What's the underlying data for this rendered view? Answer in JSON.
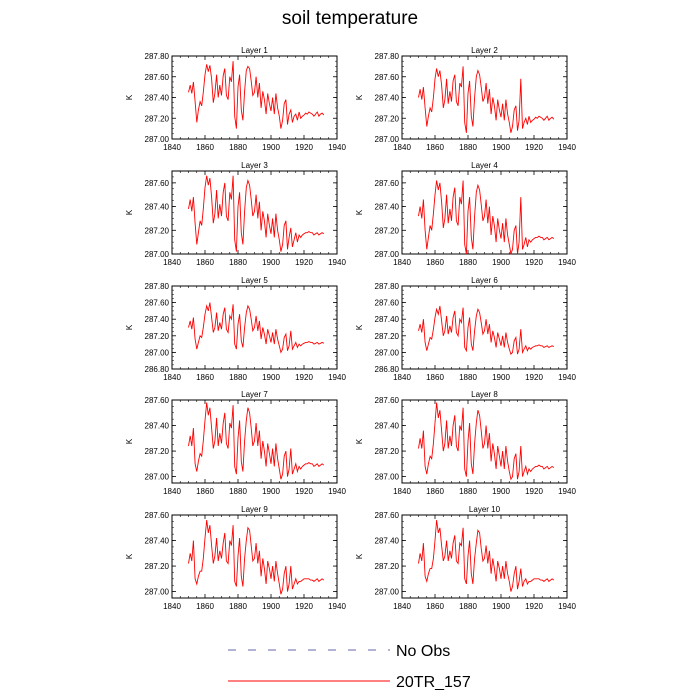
{
  "title": "soil temperature",
  "legend": {
    "placement": "bottom-center",
    "entries": [
      {
        "label": "No Obs",
        "style": "dashed",
        "color": "#6666aa"
      },
      {
        "label": "20TR_157",
        "style": "solid",
        "color": "#ff0000"
      }
    ]
  },
  "series_color": "#ff0000",
  "chart_data": [
    {
      "type": "line",
      "title": "Layer 1",
      "ylabel": "K",
      "xlim": [
        1840,
        1940
      ],
      "ylim": [
        287.0,
        287.8
      ],
      "xticks": [
        1840,
        1860,
        1880,
        1900,
        1920,
        1940
      ],
      "yticks": [
        287.0,
        287.2,
        287.4,
        287.6,
        287.8
      ],
      "ytick_labels": [
        "287.00",
        "287.20",
        "287.40",
        "287.60",
        "287.80"
      ],
      "x0": 1850,
      "values": [
        287.45,
        287.52,
        287.44,
        287.55,
        287.36,
        287.16,
        287.28,
        287.36,
        287.32,
        287.45,
        287.62,
        287.72,
        287.65,
        287.71,
        287.58,
        287.35,
        287.44,
        287.62,
        287.4,
        287.52,
        287.42,
        287.61,
        287.68,
        287.42,
        287.38,
        287.6,
        287.55,
        287.75,
        287.22,
        287.1,
        287.5,
        287.62,
        287.28,
        287.18,
        287.46,
        287.66,
        287.7,
        287.68,
        287.56,
        287.42,
        287.45,
        287.6,
        287.4,
        287.54,
        287.3,
        287.46,
        287.38,
        287.24,
        287.44,
        287.34,
        287.27,
        287.4,
        287.24,
        287.44,
        287.3,
        287.22,
        287.1,
        287.18,
        287.34,
        287.38,
        287.14,
        287.24,
        287.28,
        287.16,
        287.22,
        287.24,
        287.18,
        287.26,
        287.2,
        287.22,
        287.23,
        287.25,
        287.24,
        287.26,
        287.25,
        287.24,
        287.22,
        287.24,
        287.26,
        287.22,
        287.24,
        287.25,
        287.23
      ],
      "x_end": 1932
    },
    {
      "type": "line",
      "title": "Layer 2",
      "ylabel": "K",
      "xlim": [
        1840,
        1940
      ],
      "ylim": [
        287.0,
        287.8
      ],
      "xticks": [
        1840,
        1860,
        1880,
        1900,
        1920,
        1940
      ],
      "yticks": [
        287.0,
        287.2,
        287.4,
        287.6,
        287.8
      ],
      "ytick_labels": [
        "287.00",
        "287.20",
        "287.40",
        "287.60",
        "287.80"
      ],
      "x0": 1850,
      "values": [
        287.4,
        287.48,
        287.38,
        287.5,
        287.3,
        287.12,
        287.22,
        287.3,
        287.26,
        287.4,
        287.58,
        287.68,
        287.6,
        287.66,
        287.52,
        287.3,
        287.38,
        287.58,
        287.34,
        287.46,
        287.36,
        287.56,
        287.62,
        287.36,
        287.32,
        287.54,
        287.5,
        287.7,
        287.16,
        287.06,
        287.44,
        287.56,
        287.22,
        287.12,
        287.4,
        287.6,
        287.66,
        287.62,
        287.5,
        287.36,
        287.4,
        287.54,
        287.34,
        287.48,
        287.24,
        287.4,
        287.32,
        287.18,
        287.38,
        287.28,
        287.21,
        287.34,
        287.18,
        287.38,
        287.24,
        287.16,
        287.06,
        287.12,
        287.28,
        287.32,
        287.08,
        287.18,
        287.58,
        287.1,
        287.16,
        287.2,
        287.14,
        287.22,
        287.16,
        287.18,
        287.19,
        287.21,
        287.2,
        287.22,
        287.21,
        287.2,
        287.18,
        287.2,
        287.22,
        287.18,
        287.2,
        287.21,
        287.19
      ],
      "x_end": 1932
    },
    {
      "type": "line",
      "title": "Layer 3",
      "ylabel": "K",
      "xlim": [
        1840,
        1940
      ],
      "ylim": [
        287.0,
        287.7
      ],
      "xticks": [
        1840,
        1860,
        1880,
        1900,
        1920,
        1940
      ],
      "yticks": [
        287.0,
        287.2,
        287.4,
        287.6
      ],
      "ytick_labels": [
        "287.00",
        "287.20",
        "287.40",
        "287.60"
      ],
      "x0": 1850,
      "values": [
        287.38,
        287.46,
        287.36,
        287.48,
        287.26,
        287.08,
        287.18,
        287.28,
        287.24,
        287.38,
        287.56,
        287.66,
        287.58,
        287.64,
        287.48,
        287.26,
        287.34,
        287.54,
        287.3,
        287.42,
        287.32,
        287.52,
        287.6,
        287.32,
        287.28,
        287.52,
        287.46,
        287.66,
        287.12,
        287.02,
        287.4,
        287.52,
        287.18,
        287.08,
        287.36,
        287.56,
        287.62,
        287.58,
        287.46,
        287.32,
        287.36,
        287.5,
        287.3,
        287.44,
        287.2,
        287.36,
        287.28,
        287.14,
        287.34,
        287.24,
        287.17,
        287.3,
        287.14,
        287.34,
        287.2,
        287.12,
        287.02,
        287.08,
        287.24,
        287.28,
        287.04,
        287.14,
        287.22,
        287.06,
        287.12,
        287.18,
        287.1,
        287.16,
        287.14,
        287.16,
        287.17,
        287.18,
        287.18,
        287.19,
        287.18,
        287.18,
        287.16,
        287.17,
        287.18,
        287.16,
        287.17,
        287.18,
        287.17
      ],
      "x_end": 1932
    },
    {
      "type": "line",
      "title": "Layer 4",
      "ylabel": "K",
      "xlim": [
        1840,
        1940
      ],
      "ylim": [
        287.0,
        287.7
      ],
      "xticks": [
        1840,
        1860,
        1880,
        1900,
        1920,
        1940
      ],
      "yticks": [
        287.0,
        287.2,
        287.4,
        287.6
      ],
      "ytick_labels": [
        "287.00",
        "287.20",
        "287.40",
        "287.60"
      ],
      "x0": 1850,
      "values": [
        287.32,
        287.4,
        287.3,
        287.46,
        287.2,
        287.04,
        287.14,
        287.24,
        287.2,
        287.34,
        287.5,
        287.62,
        287.54,
        287.6,
        287.44,
        287.22,
        287.3,
        287.5,
        287.26,
        287.38,
        287.28,
        287.48,
        287.56,
        287.28,
        287.24,
        287.48,
        287.42,
        287.62,
        287.08,
        287.0,
        287.36,
        287.48,
        287.14,
        287.04,
        287.32,
        287.52,
        287.58,
        287.54,
        287.42,
        287.28,
        287.32,
        287.46,
        287.26,
        287.4,
        287.16,
        287.32,
        287.24,
        287.1,
        287.3,
        287.2,
        287.13,
        287.26,
        287.1,
        287.3,
        287.16,
        287.08,
        287.0,
        287.04,
        287.2,
        287.24,
        287.0,
        287.1,
        287.48,
        287.04,
        287.08,
        287.14,
        287.06,
        287.12,
        287.1,
        287.12,
        287.13,
        287.14,
        287.14,
        287.15,
        287.14,
        287.14,
        287.12,
        287.13,
        287.14,
        287.12,
        287.13,
        287.14,
        287.13
      ],
      "x_end": 1932
    },
    {
      "type": "line",
      "title": "Layer 5",
      "ylabel": "K",
      "xlim": [
        1840,
        1940
      ],
      "ylim": [
        286.8,
        287.8
      ],
      "xticks": [
        1840,
        1860,
        1880,
        1900,
        1920,
        1940
      ],
      "yticks": [
        286.8,
        287.0,
        287.2,
        287.4,
        287.6,
        287.8
      ],
      "ytick_labels": [
        "286.80",
        "287.00",
        "287.20",
        "287.40",
        "287.60",
        "287.80"
      ],
      "x0": 1850,
      "values": [
        287.3,
        287.38,
        287.28,
        287.42,
        287.16,
        287.04,
        287.12,
        287.2,
        287.18,
        287.3,
        287.46,
        287.56,
        287.5,
        287.6,
        287.42,
        287.24,
        287.3,
        287.48,
        287.26,
        287.36,
        287.28,
        287.46,
        287.54,
        287.28,
        287.24,
        287.44,
        287.4,
        287.58,
        287.1,
        287.04,
        287.34,
        287.46,
        287.14,
        287.06,
        287.3,
        287.48,
        287.56,
        287.52,
        287.4,
        287.26,
        287.3,
        287.44,
        287.26,
        287.38,
        287.16,
        287.3,
        287.22,
        287.1,
        287.28,
        287.2,
        287.12,
        287.24,
        287.1,
        287.28,
        287.16,
        287.08,
        287.0,
        287.04,
        287.18,
        287.22,
        287.02,
        287.08,
        287.26,
        287.04,
        287.08,
        287.12,
        287.06,
        287.1,
        287.08,
        287.1,
        287.11,
        287.12,
        287.12,
        287.13,
        287.12,
        287.12,
        287.1,
        287.11,
        287.12,
        287.1,
        287.11,
        287.12,
        287.11
      ],
      "x_end": 1932
    },
    {
      "type": "line",
      "title": "Layer 6",
      "ylabel": "K",
      "xlim": [
        1840,
        1940
      ],
      "ylim": [
        286.8,
        287.8
      ],
      "xticks": [
        1840,
        1860,
        1880,
        1900,
        1920,
        1940
      ],
      "yticks": [
        286.8,
        287.0,
        287.2,
        287.4,
        287.6,
        287.8
      ],
      "ytick_labels": [
        "286.80",
        "287.00",
        "287.20",
        "287.40",
        "287.60",
        "287.80"
      ],
      "x0": 1850,
      "values": [
        287.26,
        287.34,
        287.24,
        287.4,
        287.12,
        287.02,
        287.1,
        287.18,
        287.16,
        287.28,
        287.42,
        287.52,
        287.46,
        287.56,
        287.38,
        287.2,
        287.26,
        287.44,
        287.22,
        287.32,
        287.24,
        287.42,
        287.5,
        287.24,
        287.2,
        287.4,
        287.36,
        287.54,
        287.06,
        287.02,
        287.3,
        287.42,
        287.1,
        287.02,
        287.26,
        287.44,
        287.52,
        287.48,
        287.36,
        287.22,
        287.26,
        287.4,
        287.22,
        287.34,
        287.12,
        287.26,
        287.18,
        287.06,
        287.24,
        287.16,
        287.08,
        287.2,
        287.06,
        287.24,
        287.12,
        287.04,
        286.98,
        287.0,
        287.14,
        287.18,
        286.98,
        287.04,
        287.28,
        287.0,
        287.04,
        287.08,
        287.02,
        287.06,
        287.04,
        287.06,
        287.07,
        287.08,
        287.08,
        287.09,
        287.08,
        287.08,
        287.06,
        287.07,
        287.08,
        287.06,
        287.07,
        287.08,
        287.07
      ],
      "x_end": 1932
    },
    {
      "type": "line",
      "title": "Layer 7",
      "ylabel": "K",
      "xlim": [
        1840,
        1940
      ],
      "ylim": [
        286.95,
        287.6
      ],
      "xticks": [
        1840,
        1860,
        1880,
        1900,
        1920,
        1940
      ],
      "yticks": [
        287.0,
        287.2,
        287.4,
        287.6
      ],
      "ytick_labels": [
        "287.00",
        "287.20",
        "287.40",
        "287.60"
      ],
      "x0": 1850,
      "values": [
        287.24,
        287.32,
        287.24,
        287.38,
        287.1,
        287.04,
        287.12,
        287.18,
        287.16,
        287.28,
        287.44,
        287.58,
        287.48,
        287.54,
        287.38,
        287.22,
        287.28,
        287.46,
        287.24,
        287.34,
        287.26,
        287.42,
        287.5,
        287.26,
        287.22,
        287.42,
        287.38,
        287.56,
        287.08,
        287.02,
        287.3,
        287.44,
        287.12,
        287.04,
        287.28,
        287.44,
        287.54,
        287.5,
        287.38,
        287.24,
        287.28,
        287.42,
        287.24,
        287.36,
        287.14,
        287.28,
        287.2,
        287.08,
        287.26,
        287.18,
        287.1,
        287.22,
        287.08,
        287.26,
        287.14,
        287.06,
        286.98,
        287.02,
        287.16,
        287.2,
        287.0,
        287.06,
        287.22,
        287.02,
        287.06,
        287.1,
        287.04,
        287.08,
        287.06,
        287.08,
        287.09,
        287.1,
        287.1,
        287.11,
        287.1,
        287.1,
        287.08,
        287.09,
        287.1,
        287.08,
        287.09,
        287.1,
        287.09
      ],
      "x_end": 1932
    },
    {
      "type": "line",
      "title": "Layer 8",
      "ylabel": "K",
      "xlim": [
        1840,
        1940
      ],
      "ylim": [
        286.95,
        287.6
      ],
      "xticks": [
        1840,
        1860,
        1880,
        1900,
        1920,
        1940
      ],
      "yticks": [
        287.0,
        287.2,
        287.4,
        287.6
      ],
      "ytick_labels": [
        "287.00",
        "287.20",
        "287.40",
        "287.60"
      ],
      "x0": 1850,
      "values": [
        287.22,
        287.3,
        287.22,
        287.36,
        287.08,
        287.02,
        287.1,
        287.16,
        287.14,
        287.26,
        287.42,
        287.58,
        287.46,
        287.52,
        287.36,
        287.2,
        287.26,
        287.44,
        287.22,
        287.32,
        287.24,
        287.4,
        287.48,
        287.24,
        287.2,
        287.4,
        287.36,
        287.54,
        287.06,
        287.0,
        287.28,
        287.42,
        287.1,
        287.02,
        287.26,
        287.42,
        287.52,
        287.48,
        287.36,
        287.22,
        287.26,
        287.4,
        287.22,
        287.34,
        287.12,
        287.26,
        287.18,
        287.06,
        287.24,
        287.16,
        287.08,
        287.2,
        287.06,
        287.24,
        287.12,
        287.04,
        286.98,
        287.0,
        287.14,
        287.18,
        286.98,
        287.04,
        287.24,
        287.0,
        287.04,
        287.08,
        287.02,
        287.06,
        287.04,
        287.06,
        287.07,
        287.08,
        287.08,
        287.09,
        287.08,
        287.08,
        287.06,
        287.07,
        287.08,
        287.06,
        287.07,
        287.08,
        287.07
      ],
      "x_end": 1932
    },
    {
      "type": "line",
      "title": "Layer 9",
      "ylabel": "K",
      "xlim": [
        1840,
        1940
      ],
      "ylim": [
        286.95,
        287.6
      ],
      "xticks": [
        1840,
        1860,
        1880,
        1900,
        1920,
        1940
      ],
      "yticks": [
        287.0,
        287.2,
        287.4,
        287.6
      ],
      "ytick_labels": [
        "287.00",
        "287.20",
        "287.40",
        "287.60"
      ],
      "x0": 1850,
      "values": [
        287.22,
        287.3,
        287.24,
        287.4,
        287.1,
        287.06,
        287.12,
        287.16,
        287.16,
        287.26,
        287.42,
        287.56,
        287.46,
        287.52,
        287.36,
        287.22,
        287.28,
        287.42,
        287.24,
        287.32,
        287.26,
        287.38,
        287.46,
        287.24,
        287.22,
        287.4,
        287.36,
        287.52,
        287.08,
        287.04,
        287.28,
        287.42,
        287.12,
        287.04,
        287.26,
        287.4,
        287.5,
        287.48,
        287.36,
        287.24,
        287.26,
        287.38,
        287.22,
        287.32,
        287.12,
        287.26,
        287.18,
        287.06,
        287.24,
        287.18,
        287.1,
        287.2,
        287.08,
        287.24,
        287.14,
        287.06,
        286.98,
        287.02,
        287.14,
        287.2,
        287.0,
        287.06,
        287.2,
        287.02,
        287.06,
        287.1,
        287.06,
        287.08,
        287.08,
        287.09,
        287.1,
        287.1,
        287.1,
        287.1,
        287.09,
        287.09,
        287.08,
        287.09,
        287.1,
        287.08,
        287.09,
        287.1,
        287.09
      ],
      "x_end": 1932
    },
    {
      "type": "line",
      "title": "Layer 10",
      "ylabel": "K",
      "xlim": [
        1840,
        1940
      ],
      "ylim": [
        286.95,
        287.6
      ],
      "xticks": [
        1840,
        1860,
        1880,
        1900,
        1920,
        1940
      ],
      "yticks": [
        287.0,
        287.2,
        287.4,
        287.6
      ],
      "ytick_labels": [
        "287.00",
        "287.20",
        "287.40",
        "287.60"
      ],
      "x0": 1850,
      "values": [
        287.22,
        287.3,
        287.24,
        287.38,
        287.12,
        287.08,
        287.14,
        287.18,
        287.18,
        287.26,
        287.4,
        287.56,
        287.46,
        287.5,
        287.36,
        287.24,
        287.28,
        287.4,
        287.24,
        287.32,
        287.26,
        287.38,
        287.44,
        287.24,
        287.22,
        287.38,
        287.36,
        287.5,
        287.1,
        287.06,
        287.28,
        287.4,
        287.14,
        287.06,
        287.26,
        287.38,
        287.48,
        287.46,
        287.34,
        287.24,
        287.26,
        287.36,
        287.22,
        287.32,
        287.14,
        287.26,
        287.18,
        287.08,
        287.24,
        287.18,
        287.1,
        287.2,
        287.1,
        287.24,
        287.14,
        287.08,
        287.0,
        287.04,
        287.14,
        287.2,
        287.02,
        287.08,
        287.18,
        287.04,
        287.08,
        287.1,
        287.06,
        287.08,
        287.08,
        287.09,
        287.1,
        287.1,
        287.1,
        287.1,
        287.09,
        287.09,
        287.08,
        287.09,
        287.1,
        287.08,
        287.09,
        287.1,
        287.09
      ],
      "x_end": 1932
    }
  ]
}
